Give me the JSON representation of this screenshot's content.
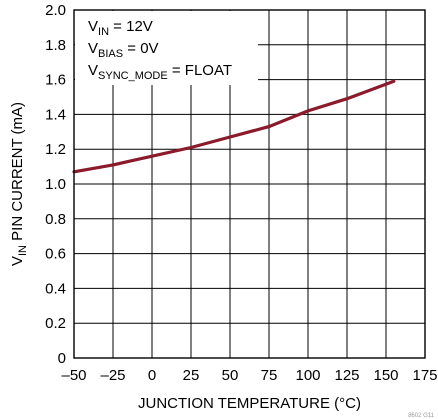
{
  "chart_data": {
    "type": "line",
    "xlabel": "JUNCTION TEMPERATURE (°C)",
    "ylabel": {
      "main_1": "V",
      "sub": "IN",
      "main_2": " PIN CURRENT (mA)"
    },
    "xlim": [
      -50,
      175
    ],
    "ylim": [
      0,
      2.0
    ],
    "xticks": [
      "–50",
      "–25",
      "0",
      "25",
      "50",
      "75",
      "100",
      "125",
      "150",
      "175"
    ],
    "yticks": [
      "0",
      "0.2",
      "0.4",
      "0.6",
      "0.8",
      "1.0",
      "1.2",
      "1.4",
      "1.6",
      "1.8",
      "2.0"
    ],
    "grid": true,
    "annotations": [
      {
        "main": "V",
        "sub": "IN",
        "rest": " = 12V"
      },
      {
        "main": "V",
        "sub": "BIAS",
        "rest": " = 0V"
      },
      {
        "main": "V",
        "sub": "SYNC_MODE",
        "rest": " = FLOAT"
      }
    ],
    "figure_id": "8602 G11",
    "series": [
      {
        "color": "#8b1a2b",
        "x": [
          -50,
          -25,
          0,
          25,
          50,
          75,
          100,
          125,
          155
        ],
        "y": [
          1.07,
          1.11,
          1.16,
          1.21,
          1.27,
          1.33,
          1.42,
          1.49,
          1.59
        ]
      }
    ]
  }
}
